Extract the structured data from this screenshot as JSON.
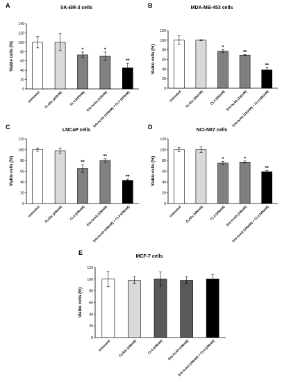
{
  "colors": {
    "untreated": "#ffffff",
    "cl4sc": "#d9d9d9",
    "cl4": "#808080",
    "erb": "#808080",
    "combo": "#000000",
    "axis": "#000000"
  },
  "chart_data": [
    {
      "letter": "A",
      "type": "bar",
      "title": "SK-BR-3 cells",
      "ylabel": "Viable cells (%)",
      "ylim": [
        0,
        140
      ],
      "yticks": [
        0,
        20,
        40,
        60,
        80,
        100,
        120,
        140
      ],
      "categories": [
        "Untreated",
        "CL4Sc (200nM)",
        "CL4 (200nM)",
        "Erb-hcAb (100nM)",
        "Erb-hcAb (100nM) + CL4 (200nM)"
      ],
      "values": [
        100,
        100,
        73,
        70,
        45
      ],
      "errors": [
        12,
        18,
        6,
        9,
        10
      ],
      "annotations": [
        "",
        "",
        "*",
        "*",
        "**"
      ],
      "colors": [
        "#ffffff",
        "#d9d9d9",
        "#808080",
        "#808080",
        "#000000"
      ]
    },
    {
      "letter": "B",
      "type": "bar",
      "title": "MDA-MB-453 cells",
      "ylabel": "Viable cells (%)",
      "ylim": [
        0,
        120
      ],
      "yticks": [
        0,
        20,
        40,
        60,
        80,
        100,
        120
      ],
      "categories": [
        "Untreated",
        "CL4Sc (400nM)",
        "CL4 (400nM)",
        "Erb-hcAb (100nM)",
        "Erb-hcAb (100nM) + CL4 (400nM)"
      ],
      "values": [
        100,
        100,
        77,
        69,
        38
      ],
      "errors": [
        9,
        1,
        3,
        1,
        5
      ],
      "annotations": [
        "",
        "",
        "*",
        "**",
        "**"
      ],
      "colors": [
        "#ffffff",
        "#d9d9d9",
        "#808080",
        "#808080",
        "#000000"
      ]
    },
    {
      "letter": "C",
      "type": "bar",
      "title": "LNCaP cells",
      "ylabel": "Viable cells (%)",
      "ylim": [
        0,
        120
      ],
      "yticks": [
        0,
        20,
        40,
        60,
        80,
        100,
        120
      ],
      "categories": [
        "Untreated",
        "CL4Sc (200nM)",
        "CL4 (200nM)",
        "Erb-hcAb (100nM)",
        "Erb-hcAb (100nM) + CL4 (200nM)"
      ],
      "values": [
        100,
        98,
        65,
        80,
        43
      ],
      "errors": [
        3,
        5,
        7,
        3,
        2
      ],
      "annotations": [
        "",
        "",
        "**",
        "**",
        "**"
      ],
      "colors": [
        "#ffffff",
        "#d9d9d9",
        "#808080",
        "#808080",
        "#000000"
      ]
    },
    {
      "letter": "D",
      "type": "bar",
      "title": "NCI-N87 cells",
      "ylabel": "Viable cells (%)",
      "ylim": [
        0,
        120
      ],
      "yticks": [
        0,
        20,
        40,
        60,
        80,
        100,
        120
      ],
      "categories": [
        "Untreated",
        "CL4Sc (400nM)",
        "CL4 (400nM)",
        "Erb-hcAb (100nM)",
        "Erb-hcAb (100nM) + CL4 (400nM)"
      ],
      "values": [
        100,
        100,
        75,
        77,
        59
      ],
      "errors": [
        4,
        5,
        3,
        2,
        2
      ],
      "annotations": [
        "",
        "",
        "*",
        "*",
        "**"
      ],
      "colors": [
        "#ffffff",
        "#d9d9d9",
        "#808080",
        "#808080",
        "#000000"
      ]
    },
    {
      "letter": "E",
      "type": "bar",
      "title": "MCF-7 cells",
      "ylabel": "Viable cells (%)",
      "ylim": [
        0,
        120
      ],
      "yticks": [
        0,
        20,
        40,
        60,
        80,
        100,
        120
      ],
      "categories": [
        "Untreated",
        "CL4Sc (200nM)",
        "CL4 (200nM)",
        "Erb-hcAb (100nM)",
        "Erb-hcAb (100nM) + CL4 (200nM)"
      ],
      "values": [
        100,
        98,
        100,
        98,
        100
      ],
      "errors": [
        13,
        6,
        12,
        6,
        8
      ],
      "annotations": [
        "",
        "",
        "",
        "",
        ""
      ],
      "colors": [
        "#ffffff",
        "#d9d9d9",
        "#595959",
        "#595959",
        "#000000"
      ]
    }
  ]
}
